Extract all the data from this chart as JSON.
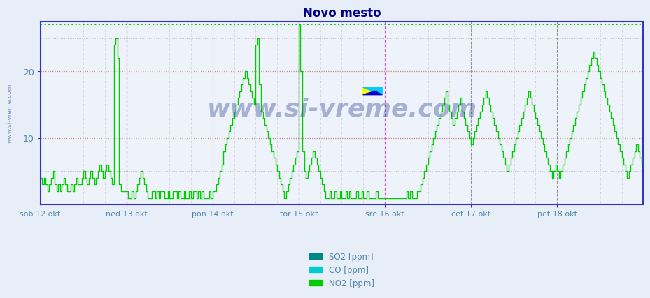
{
  "title": "Novo mesto",
  "title_color": "#00008B",
  "title_fontsize": 12,
  "background_color": "#E8EEF8",
  "plot_bg_color": "#EEF2FA",
  "ylim": [
    0,
    27.5
  ],
  "yticks": [
    10,
    20
  ],
  "num_points": 336,
  "days": 7,
  "day_labels": [
    "sob 12 okt",
    "ned 13 okt",
    "pon 14 okt",
    "tor 15 okt",
    "sre 16 okt",
    "čet 17 okt",
    "pet 18 okt"
  ],
  "day_label_color": "#5588AA",
  "watermark_text": "www.si-vreme.com",
  "watermark_color": "#1A3A8A",
  "watermark_fontsize": 26,
  "watermark_alpha": 0.35,
  "legend_labels": [
    "SO2 [ppm]",
    "CO [ppm]",
    "NO2 [ppm]"
  ],
  "legend_colors": [
    "#008888",
    "#00CCCC",
    "#00CC00"
  ],
  "so2_color": "#008888",
  "co_color": "#00CCCC",
  "no2_color": "#00CC00",
  "hgrid_color": "#CC8888",
  "hgrid_style": "dotted",
  "vgrid_color": "#999999",
  "vgrid_style": "dotted",
  "vline_magenta_color": "#CC44CC",
  "vline_black_color": "#555555",
  "axis_color": "#3333CC",
  "top_line_color": "#00CC00",
  "border_color": "#3333CC"
}
